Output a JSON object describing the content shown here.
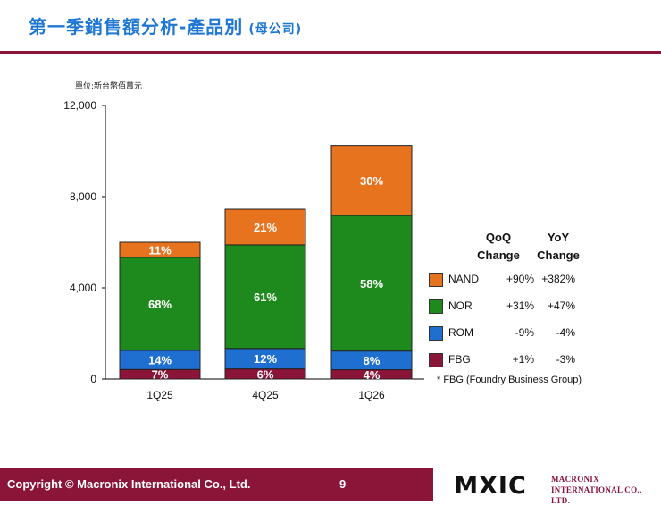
{
  "slide": {
    "title": "第一季銷售額分析-產品別",
    "title_sub": "(母公司)",
    "page_number": "9"
  },
  "footer": {
    "copyright": "Copyright © Macronix International Co., Ltd.",
    "logo_text": "MXIC",
    "company_line1": "MACRONIX",
    "company_line2": "INTERNATIONAL CO., LTD."
  },
  "colors": {
    "accent": "#8a1538",
    "title": "#1f77d4",
    "NAND": "#e8731e",
    "NOR": "#1e8a1e",
    "ROM": "#1f6fd1",
    "FBG": "#8a1538"
  },
  "chart_data": {
    "type": "bar",
    "stacked": true,
    "unit_label": "單位:新台幣佰萬元",
    "categories": [
      "1Q25",
      "4Q25",
      "1Q26"
    ],
    "totals": [
      6000,
      7450,
      10250
    ],
    "series": [
      {
        "name": "FBG",
        "percent_labels": [
          "7%",
          "6%",
          "4%"
        ],
        "share": [
          0.07,
          0.06,
          0.04
        ]
      },
      {
        "name": "ROM",
        "percent_labels": [
          "14%",
          "12%",
          "8%"
        ],
        "share": [
          0.14,
          0.12,
          0.08
        ]
      },
      {
        "name": "NOR",
        "percent_labels": [
          "68%",
          "61%",
          "58%"
        ],
        "share": [
          0.68,
          0.61,
          0.58
        ]
      },
      {
        "name": "NAND",
        "percent_labels": [
          "11%",
          "21%",
          "30%"
        ],
        "share": [
          0.11,
          0.21,
          0.3
        ]
      }
    ],
    "ylim": [
      0,
      12000
    ],
    "yticks": [
      0,
      4000,
      8000,
      12000
    ],
    "ytick_labels": [
      "0",
      "4,000",
      "8,000",
      "12,000"
    ]
  },
  "change_table": {
    "qoq_header_1": "QoQ",
    "qoq_header_2": "Change",
    "yoy_header_1": "YoY",
    "yoy_header_2": "Change",
    "rows": [
      {
        "name": "NAND",
        "qoq": "+90%",
        "yoy": "+382%"
      },
      {
        "name": "NOR",
        "qoq": "+31%",
        "yoy": "+47%"
      },
      {
        "name": "ROM",
        "qoq": "-9%",
        "yoy": "-4%"
      },
      {
        "name": "FBG",
        "qoq": "+1%",
        "yoy": "-3%"
      }
    ],
    "footnote": "* FBG (Foundry Business Group)"
  }
}
